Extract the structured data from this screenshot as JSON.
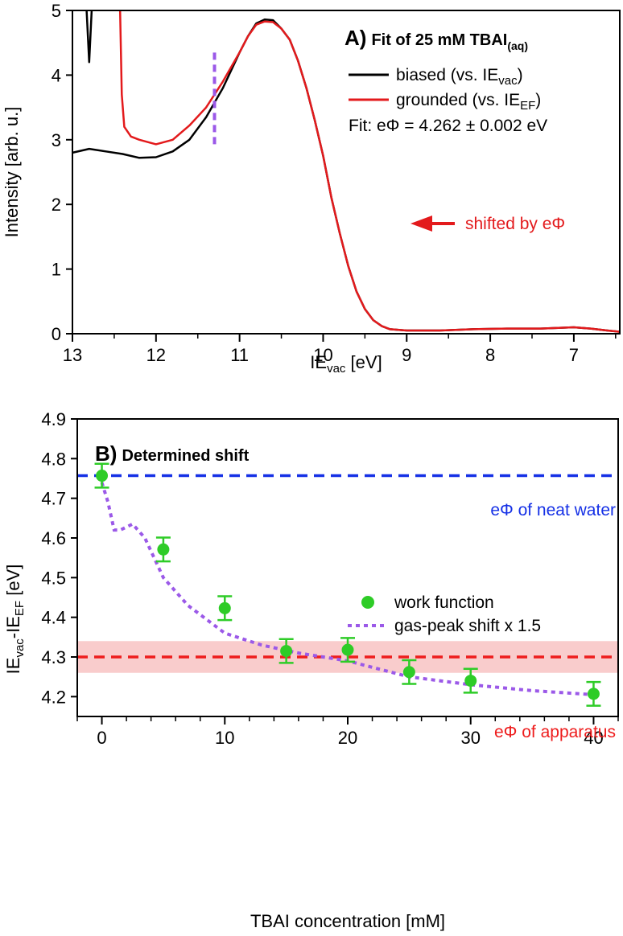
{
  "chart_data": [
    {
      "panel": "A)",
      "type": "line",
      "title": "Fit of 25 mM TBAI",
      "title_subscript": "(aq)",
      "xlabel": "IE",
      "xlabel_sub": "vac",
      "xlabel_unit": " [eV]",
      "ylabel": "Intensity [arb. u.]",
      "xlim": [
        13.0,
        6.45
      ],
      "ylim": [
        0,
        5
      ],
      "xticks": [
        13,
        12,
        11,
        10,
        9,
        8,
        7
      ],
      "yticks": [
        0,
        1,
        2,
        3,
        4,
        5
      ],
      "colors": {
        "biased": "#000000",
        "grounded": "#e31a1c",
        "marker": "#9b59e8"
      },
      "series": [
        {
          "name": "biased",
          "legend_main": "biased (vs. IE",
          "legend_sub": "vac",
          "legend_end": ")",
          "points": [
            [
              13.0,
              2.8
            ],
            [
              12.8,
              2.86
            ],
            [
              12.6,
              2.82
            ],
            [
              12.4,
              2.78
            ],
            [
              12.2,
              2.72
            ],
            [
              12.0,
              2.73
            ],
            [
              11.8,
              2.82
            ],
            [
              11.6,
              3.0
            ],
            [
              11.4,
              3.35
            ],
            [
              11.2,
              3.8
            ],
            [
              11.0,
              4.35
            ],
            [
              10.9,
              4.6
            ],
            [
              10.8,
              4.8
            ],
            [
              10.7,
              4.86
            ],
            [
              10.6,
              4.85
            ],
            [
              10.5,
              4.72
            ],
            [
              10.4,
              4.55
            ],
            [
              10.3,
              4.22
            ],
            [
              10.2,
              3.8
            ],
            [
              10.1,
              3.3
            ],
            [
              10.0,
              2.75
            ],
            [
              9.9,
              2.1
            ],
            [
              9.8,
              1.55
            ],
            [
              9.7,
              1.05
            ],
            [
              9.6,
              0.65
            ],
            [
              9.5,
              0.38
            ],
            [
              9.4,
              0.21
            ],
            [
              9.3,
              0.12
            ],
            [
              9.2,
              0.07
            ],
            [
              9.0,
              0.05
            ],
            [
              8.8,
              0.05
            ],
            [
              8.6,
              0.05
            ],
            [
              8.2,
              0.07
            ],
            [
              7.8,
              0.08
            ],
            [
              7.4,
              0.08
            ],
            [
              7.0,
              0.1
            ],
            [
              6.8,
              0.08
            ],
            [
              6.6,
              0.05
            ],
            [
              6.45,
              0.03
            ]
          ]
        },
        {
          "name": "grounded",
          "legend_main": "grounded (vs. IE",
          "legend_sub": "EF",
          "legend_end": ")",
          "points": [
            [
              12.43,
              5.0
            ],
            [
              12.41,
              3.7
            ],
            [
              12.38,
              3.2
            ],
            [
              12.3,
              3.05
            ],
            [
              12.2,
              3.0
            ],
            [
              12.0,
              2.93
            ],
            [
              11.8,
              3.0
            ],
            [
              11.6,
              3.22
            ],
            [
              11.4,
              3.5
            ],
            [
              11.2,
              3.9
            ],
            [
              11.0,
              4.35
            ],
            [
              10.9,
              4.6
            ],
            [
              10.8,
              4.78
            ],
            [
              10.7,
              4.83
            ],
            [
              10.6,
              4.82
            ],
            [
              10.5,
              4.72
            ],
            [
              10.4,
              4.55
            ],
            [
              10.3,
              4.22
            ],
            [
              10.2,
              3.8
            ],
            [
              10.1,
              3.3
            ],
            [
              10.0,
              2.75
            ],
            [
              9.9,
              2.1
            ],
            [
              9.8,
              1.55
            ],
            [
              9.7,
              1.05
            ],
            [
              9.6,
              0.65
            ],
            [
              9.5,
              0.38
            ],
            [
              9.4,
              0.21
            ],
            [
              9.3,
              0.12
            ],
            [
              9.2,
              0.07
            ],
            [
              9.0,
              0.05
            ],
            [
              8.8,
              0.05
            ],
            [
              8.6,
              0.05
            ],
            [
              8.2,
              0.07
            ],
            [
              7.8,
              0.08
            ],
            [
              7.4,
              0.08
            ],
            [
              7.0,
              0.1
            ],
            [
              6.8,
              0.08
            ],
            [
              6.6,
              0.05
            ],
            [
              6.45,
              0.03
            ]
          ]
        },
        {
          "name": "biased-gas-peak",
          "points": [
            [
              12.83,
              5.0
            ],
            [
              12.8,
              4.2
            ],
            [
              12.77,
              5.0
            ]
          ]
        }
      ],
      "marker_x": 11.3,
      "marker_yrange": [
        2.93,
        4.4
      ],
      "fit_text": "Fit: eΦ = 4.262 ± 0.002 eV",
      "shift_text": "shifted by eΦ"
    },
    {
      "panel": "B)",
      "type": "scatter",
      "title": "Determined shift",
      "xlabel": "TBAI concentration [mM]",
      "ylabel_parts": [
        "IE",
        "vac",
        "-IE",
        "EF",
        " [eV]"
      ],
      "xlim": [
        -2,
        42
      ],
      "ylim": [
        4.15,
        4.9
      ],
      "xticks": [
        0,
        10,
        20,
        30,
        40
      ],
      "yticks": [
        4.2,
        4.3,
        4.4,
        4.5,
        4.6,
        4.7,
        4.8,
        4.9
      ],
      "colors": {
        "points": "#2ecc27",
        "gas": "#9b59e8",
        "water": "#1530e6",
        "apparatus": "#ee1c1c",
        "band": "#f9cccc"
      },
      "series": [
        {
          "name": "work function",
          "x": [
            0,
            5,
            10,
            15,
            20,
            25,
            30,
            40
          ],
          "y": [
            4.757,
            4.571,
            4.423,
            4.315,
            4.318,
            4.262,
            4.24,
            4.207
          ],
          "err": [
            0.03,
            0.03,
            0.03,
            0.03,
            0.03,
            0.03,
            0.03,
            0.03
          ]
        },
        {
          "name": "gas-peak shift x 1.5",
          "x": [
            0,
            0.5,
            1,
            1.5,
            2.5,
            3.5,
            5,
            7,
            10,
            13,
            16,
            20,
            25,
            30,
            35,
            40
          ],
          "y": [
            4.74,
            4.69,
            4.62,
            4.62,
            4.635,
            4.6,
            4.5,
            4.43,
            4.36,
            4.33,
            4.31,
            4.29,
            4.25,
            4.23,
            4.215,
            4.205
          ]
        }
      ],
      "neat_water": {
        "label": "eΦ of neat water",
        "value": 4.757
      },
      "apparatus": {
        "label": "eΦ of apparatus",
        "value": 4.3,
        "band": [
          4.26,
          4.34
        ]
      }
    }
  ]
}
